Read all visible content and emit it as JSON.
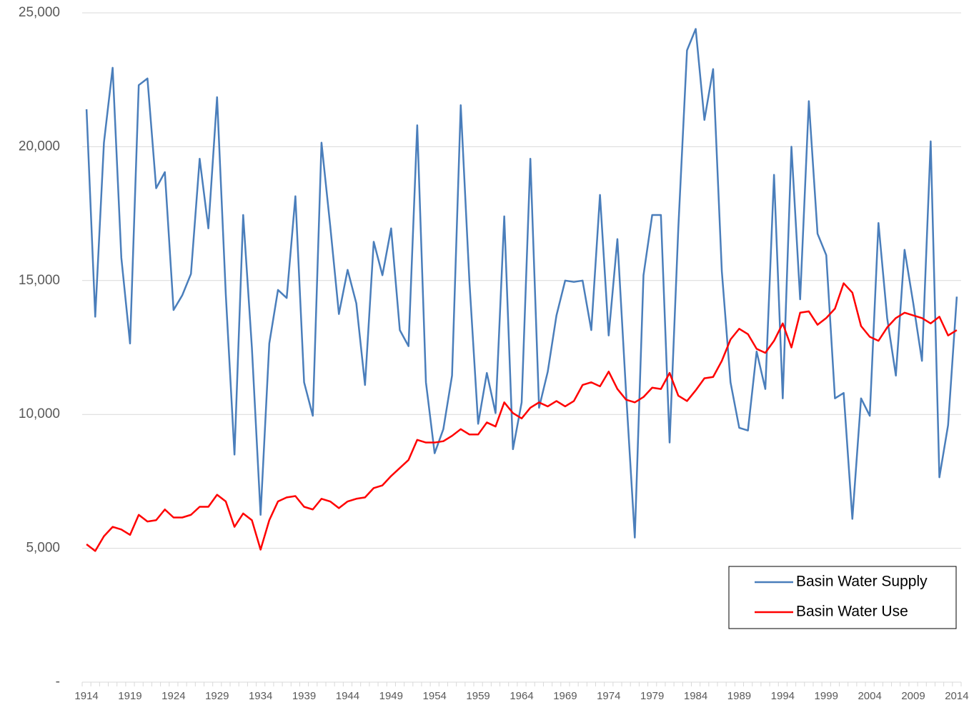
{
  "chart_data": {
    "type": "line",
    "categories": [
      "1914",
      null,
      null,
      null,
      null,
      "1919",
      null,
      null,
      null,
      null,
      "1924",
      null,
      null,
      null,
      null,
      "1929",
      null,
      null,
      null,
      null,
      "1934",
      null,
      null,
      null,
      null,
      "1939",
      null,
      null,
      null,
      null,
      "1944",
      null,
      null,
      null,
      null,
      "1949",
      null,
      null,
      null,
      null,
      "1954",
      null,
      null,
      null,
      null,
      "1959",
      null,
      null,
      null,
      null,
      "1964",
      null,
      null,
      null,
      null,
      "1969",
      null,
      null,
      null,
      null,
      "1974",
      null,
      null,
      null,
      null,
      "1979",
      null,
      null,
      null,
      null,
      "1984",
      null,
      null,
      null,
      null,
      "1989",
      null,
      null,
      null,
      null,
      "1994",
      null,
      null,
      null,
      null,
      "1999",
      null,
      null,
      null,
      null,
      "2004",
      null,
      null,
      null,
      null,
      "2009",
      null,
      null,
      null,
      null,
      "2014"
    ],
    "series": [
      {
        "name": "Basin Water Supply",
        "color": "#4a7ebb",
        "values": [
          21400,
          13650,
          20150,
          22950,
          15850,
          12650,
          22300,
          22550,
          18450,
          19050,
          13900,
          14450,
          15250,
          19550,
          16950,
          21850,
          14500,
          8500,
          17450,
          12500,
          6250,
          12650,
          14650,
          14350,
          18150,
          11200,
          9950,
          20150,
          17050,
          13750,
          15400,
          14150,
          11100,
          16450,
          15200,
          16950,
          13150,
          12550,
          20800,
          11200,
          8550,
          9450,
          11450,
          21550,
          14950,
          9650,
          11550,
          10050,
          17400,
          8700,
          10450,
          19550,
          10250,
          11600,
          13700,
          15000,
          14950,
          15000,
          13150,
          18200,
          12950,
          16550,
          10800,
          5400,
          15200,
          17450,
          17450,
          8950,
          16950,
          23600,
          24400,
          21000,
          22900,
          15350,
          11200,
          9500,
          9400,
          12350,
          10950,
          18950,
          10600,
          20000,
          14300,
          21700,
          16750,
          15950,
          10600,
          10800,
          6100,
          10600,
          9950,
          17150,
          13600,
          11450,
          16150,
          14150,
          12000,
          20200,
          7650,
          9600,
          14400
        ]
      },
      {
        "name": "Basin Water Use",
        "color": "#ff0000",
        "values": [
          5150,
          4900,
          5450,
          5800,
          5700,
          5500,
          6250,
          6000,
          6050,
          6450,
          6150,
          6150,
          6250,
          6550,
          6550,
          7000,
          6750,
          5800,
          6300,
          6050,
          4950,
          6050,
          6750,
          6900,
          6950,
          6550,
          6450,
          6850,
          6750,
          6500,
          6750,
          6850,
          6900,
          7250,
          7350,
          7700,
          8000,
          8300,
          9050,
          8950,
          8950,
          9000,
          9200,
          9450,
          9250,
          9250,
          9700,
          9550,
          10450,
          10050,
          9850,
          10250,
          10450,
          10300,
          10500,
          10300,
          10500,
          11100,
          11200,
          11050,
          11600,
          10950,
          10550,
          10450,
          10650,
          11000,
          10950,
          11550,
          10700,
          10500,
          10900,
          11350,
          11400,
          12000,
          12800,
          13200,
          13000,
          12450,
          12300,
          12750,
          13400,
          12500,
          13800,
          13850,
          13350,
          13600,
          13950,
          14900,
          14550,
          13300,
          12900,
          12750,
          13250,
          13600,
          13800,
          13700,
          13600,
          13400,
          13650,
          12950,
          13150
        ]
      }
    ],
    "ylim": [
      0,
      25000
    ],
    "yticks": [
      {
        "value": 0,
        "label": "-"
      },
      {
        "value": 5000,
        "label": "5,000"
      },
      {
        "value": 10000,
        "label": "10,000"
      },
      {
        "value": 15000,
        "label": "15,000"
      },
      {
        "value": 20000,
        "label": "20,000"
      },
      {
        "value": 25000,
        "label": "25,000"
      }
    ],
    "grid": true,
    "legend": "lower right"
  }
}
